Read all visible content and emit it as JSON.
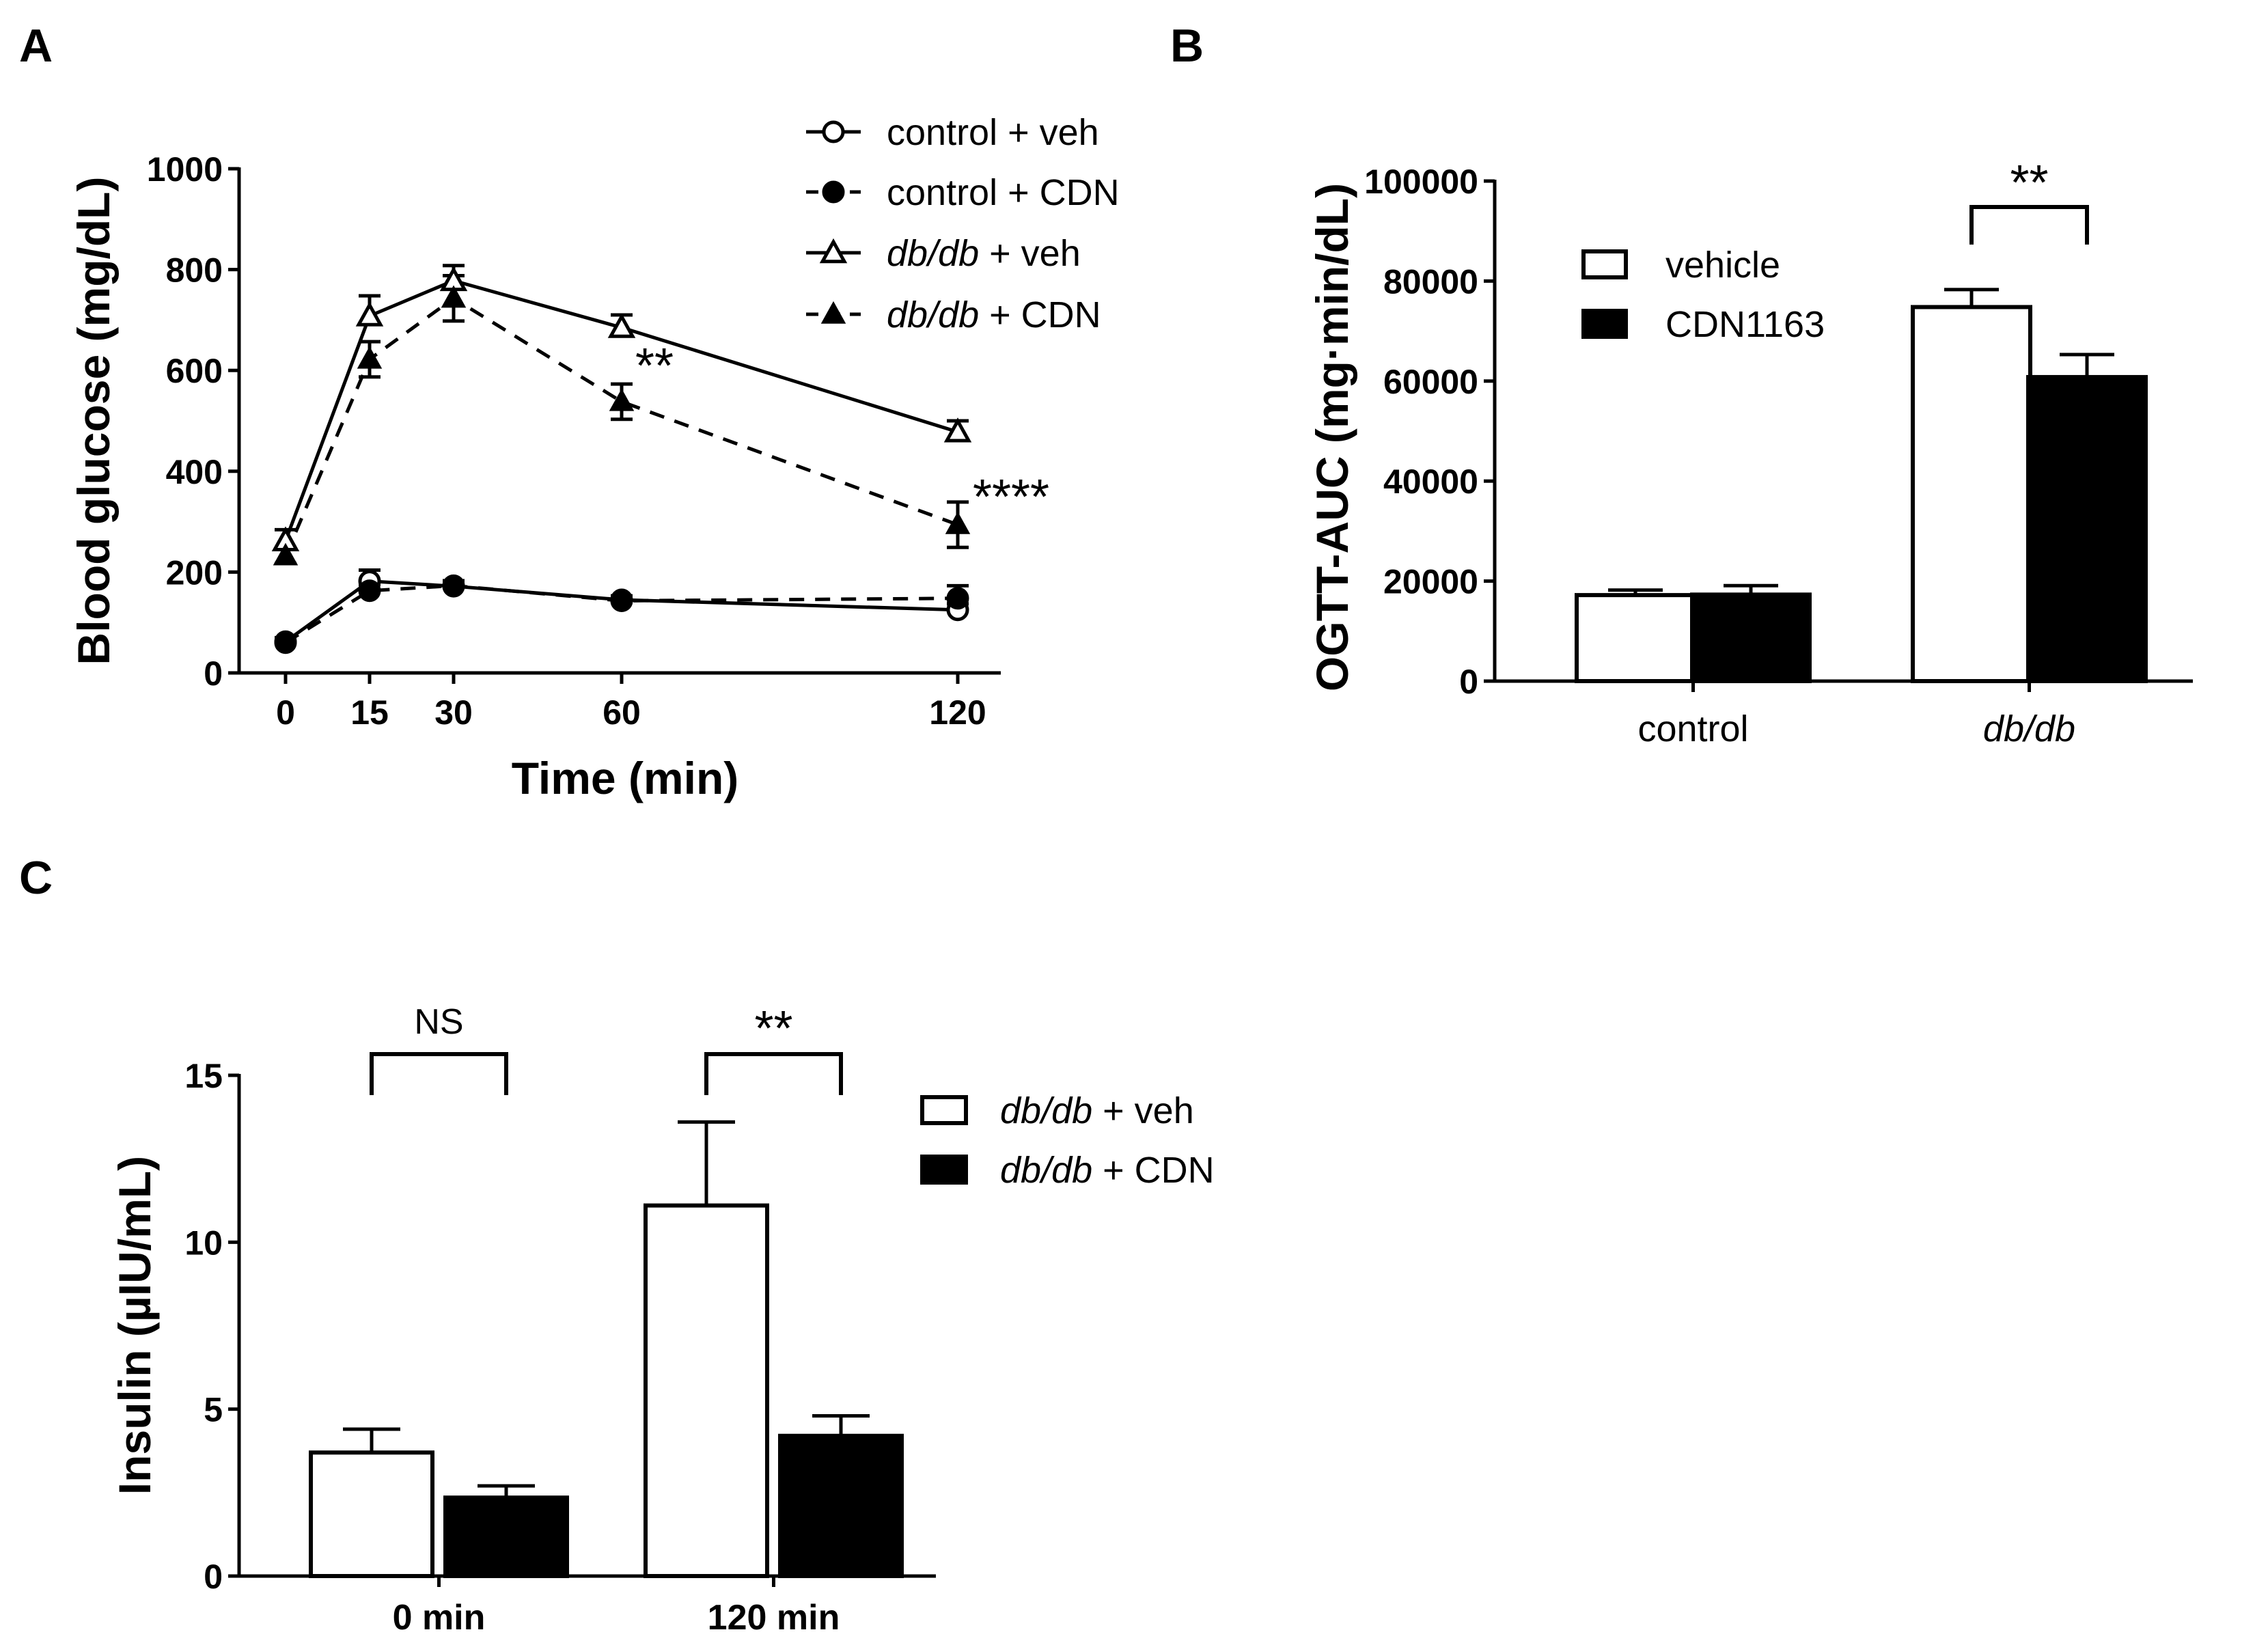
{
  "chart_data": [
    {
      "panel": "A",
      "type": "line",
      "xlabel": "Time (min)",
      "ylabel": "Blood glucose (mg/dL)",
      "ylim": [
        0,
        1000
      ],
      "yticks": [
        "0",
        "200",
        "400",
        "600",
        "800",
        "1000"
      ],
      "x": [
        0,
        15,
        30,
        60,
        120
      ],
      "xticks": [
        "0",
        "15",
        "30",
        "60",
        "120"
      ],
      "series": [
        {
          "name": "control + veh",
          "name_parts": [
            "control",
            " + veh"
          ],
          "italic_first": false,
          "marker": "circle-open",
          "dashed": false,
          "values": [
            62,
            182,
            172,
            145,
            125
          ],
          "errors": [
            8,
            22,
            10,
            8,
            12
          ]
        },
        {
          "name": "control + CDN",
          "name_parts": [
            "control",
            " + CDN"
          ],
          "italic_first": false,
          "marker": "circle-filled",
          "dashed": true,
          "values": [
            60,
            163,
            173,
            143,
            148
          ],
          "errors": [
            8,
            12,
            10,
            8,
            25
          ]
        },
        {
          "name": "db/db + veh",
          "name_parts": [
            "db/db",
            " + veh"
          ],
          "italic_first": true,
          "marker": "triangle-open",
          "dashed": false,
          "values": [
            262,
            708,
            778,
            685,
            478
          ],
          "errors": [
            22,
            40,
            30,
            25,
            22
          ]
        },
        {
          "name": "db/db + CDN",
          "name_parts": [
            "db/db",
            " + CDN"
          ],
          "italic_first": true,
          "marker": "triangle-filled",
          "dashed": true,
          "values": [
            232,
            622,
            743,
            538,
            294
          ],
          "errors": [
            15,
            35,
            45,
            35,
            45
          ]
        }
      ],
      "annotations": [
        {
          "text": "**",
          "x": 60
        },
        {
          "text": "****",
          "x": 120
        }
      ]
    },
    {
      "panel": "B",
      "type": "bar",
      "ylabel": "OGTT-AUC (mg·min/dL)",
      "ylim": [
        0,
        100000
      ],
      "yticks": [
        "0",
        "20000",
        "40000",
        "60000",
        "80000",
        "100000"
      ],
      "categories": [
        "control",
        "db/db"
      ],
      "categories_italic": [
        false,
        true
      ],
      "series": [
        {
          "name": "vehicle",
          "fill": "open",
          "values": [
            17200,
            74800
          ],
          "errors": [
            1000,
            3500
          ]
        },
        {
          "name": "CDN1163",
          "fill": "filled",
          "values": [
            17300,
            60800
          ],
          "errors": [
            1800,
            4500
          ]
        }
      ],
      "annotations": [
        {
          "text": "**",
          "category": "db/db"
        }
      ]
    },
    {
      "panel": "C",
      "type": "bar",
      "ylabel": "Insulin (µIU/mL)",
      "ylim": [
        0,
        15
      ],
      "yticks": [
        "0",
        "5",
        "10",
        "15"
      ],
      "categories": [
        "0 min",
        "120 min"
      ],
      "series": [
        {
          "name": "db/db + veh",
          "name_parts": [
            "db/db",
            " + veh"
          ],
          "fill": "open",
          "values": [
            3.7,
            11.1
          ],
          "errors": [
            0.7,
            2.5
          ]
        },
        {
          "name": "db/db + CDN",
          "name_parts": [
            "db/db",
            " + CDN"
          ],
          "fill": "filled",
          "values": [
            2.35,
            4.2
          ],
          "errors": [
            0.35,
            0.6
          ]
        }
      ],
      "annotations": [
        {
          "text": "NS",
          "category": "0 min"
        },
        {
          "text": "**",
          "category": "120 min"
        }
      ]
    }
  ]
}
